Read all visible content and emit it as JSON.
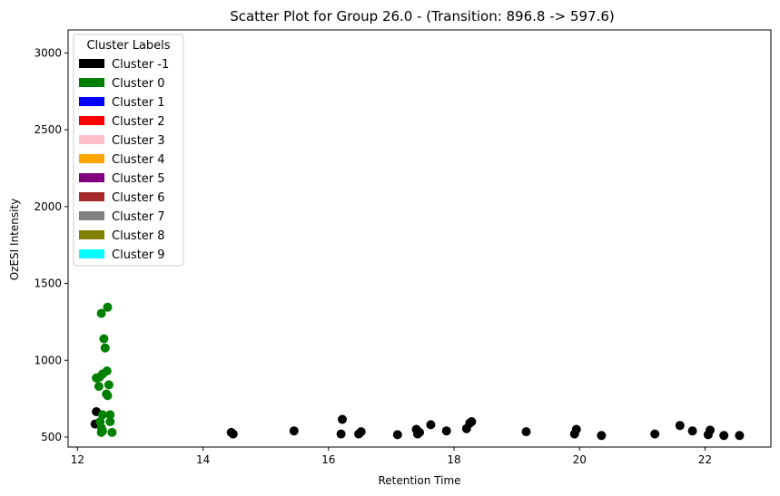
{
  "chart_data": {
    "type": "scatter",
    "title": "Scatter Plot for Group 26.0 -  (Transition: 896.8 -> 597.6)",
    "xlabel": "Retention Time",
    "ylabel": "OzESI Intensity",
    "xlim": [
      11.85,
      23.05
    ],
    "ylim": [
      435,
      3150
    ],
    "x_ticks": [
      12,
      14,
      16,
      18,
      20,
      22
    ],
    "y_ticks": [
      500,
      1000,
      1500,
      2000,
      2500,
      3000
    ],
    "grid": false,
    "legend": {
      "title": "Cluster Labels",
      "placement": "upper-left",
      "entries": [
        {
          "label": "Cluster -1",
          "color": "#000000"
        },
        {
          "label": "Cluster 0",
          "color": "#008000"
        },
        {
          "label": "Cluster 1",
          "color": "#0000ff"
        },
        {
          "label": "Cluster 2",
          "color": "#ff0000"
        },
        {
          "label": "Cluster 3",
          "color": "#ffc0cb"
        },
        {
          "label": "Cluster 4",
          "color": "#ffa500"
        },
        {
          "label": "Cluster 5",
          "color": "#800080"
        },
        {
          "label": "Cluster 6",
          "color": "#a52a2a"
        },
        {
          "label": "Cluster 7",
          "color": "#808080"
        },
        {
          "label": "Cluster 8",
          "color": "#808000"
        },
        {
          "label": "Cluster 9",
          "color": "#00ffff"
        }
      ]
    },
    "series": [
      {
        "name": "Cluster -1",
        "color": "#000000",
        "points": [
          [
            12.28,
            585
          ],
          [
            12.3,
            665
          ],
          [
            14.45,
            530
          ],
          [
            14.48,
            520
          ],
          [
            15.45,
            540
          ],
          [
            16.2,
            520
          ],
          [
            16.22,
            615
          ],
          [
            16.48,
            520
          ],
          [
            16.52,
            535
          ],
          [
            17.1,
            515
          ],
          [
            17.4,
            550
          ],
          [
            17.42,
            520
          ],
          [
            17.45,
            530
          ],
          [
            17.63,
            580
          ],
          [
            17.88,
            540
          ],
          [
            18.2,
            555
          ],
          [
            18.25,
            590
          ],
          [
            18.28,
            600
          ],
          [
            19.15,
            535
          ],
          [
            19.92,
            520
          ],
          [
            19.95,
            550
          ],
          [
            20.35,
            510
          ],
          [
            21.2,
            520
          ],
          [
            21.6,
            575
          ],
          [
            21.8,
            540
          ],
          [
            22.05,
            515
          ],
          [
            22.08,
            545
          ],
          [
            22.3,
            510
          ],
          [
            22.55,
            510
          ]
        ]
      },
      {
        "name": "Cluster 0",
        "color": "#008000",
        "points": [
          [
            12.48,
            1345
          ],
          [
            12.38,
            1305
          ],
          [
            12.42,
            1140
          ],
          [
            12.44,
            1080
          ],
          [
            12.47,
            930
          ],
          [
            12.4,
            910
          ],
          [
            12.35,
            890
          ],
          [
            12.3,
            885
          ],
          [
            12.5,
            840
          ],
          [
            12.34,
            830
          ],
          [
            12.46,
            780
          ],
          [
            12.48,
            770
          ],
          [
            12.4,
            645
          ],
          [
            12.52,
            645
          ],
          [
            12.36,
            600
          ],
          [
            12.52,
            600
          ],
          [
            12.38,
            560
          ],
          [
            12.4,
            540
          ],
          [
            12.55,
            530
          ],
          [
            12.38,
            530
          ]
        ]
      }
    ]
  }
}
